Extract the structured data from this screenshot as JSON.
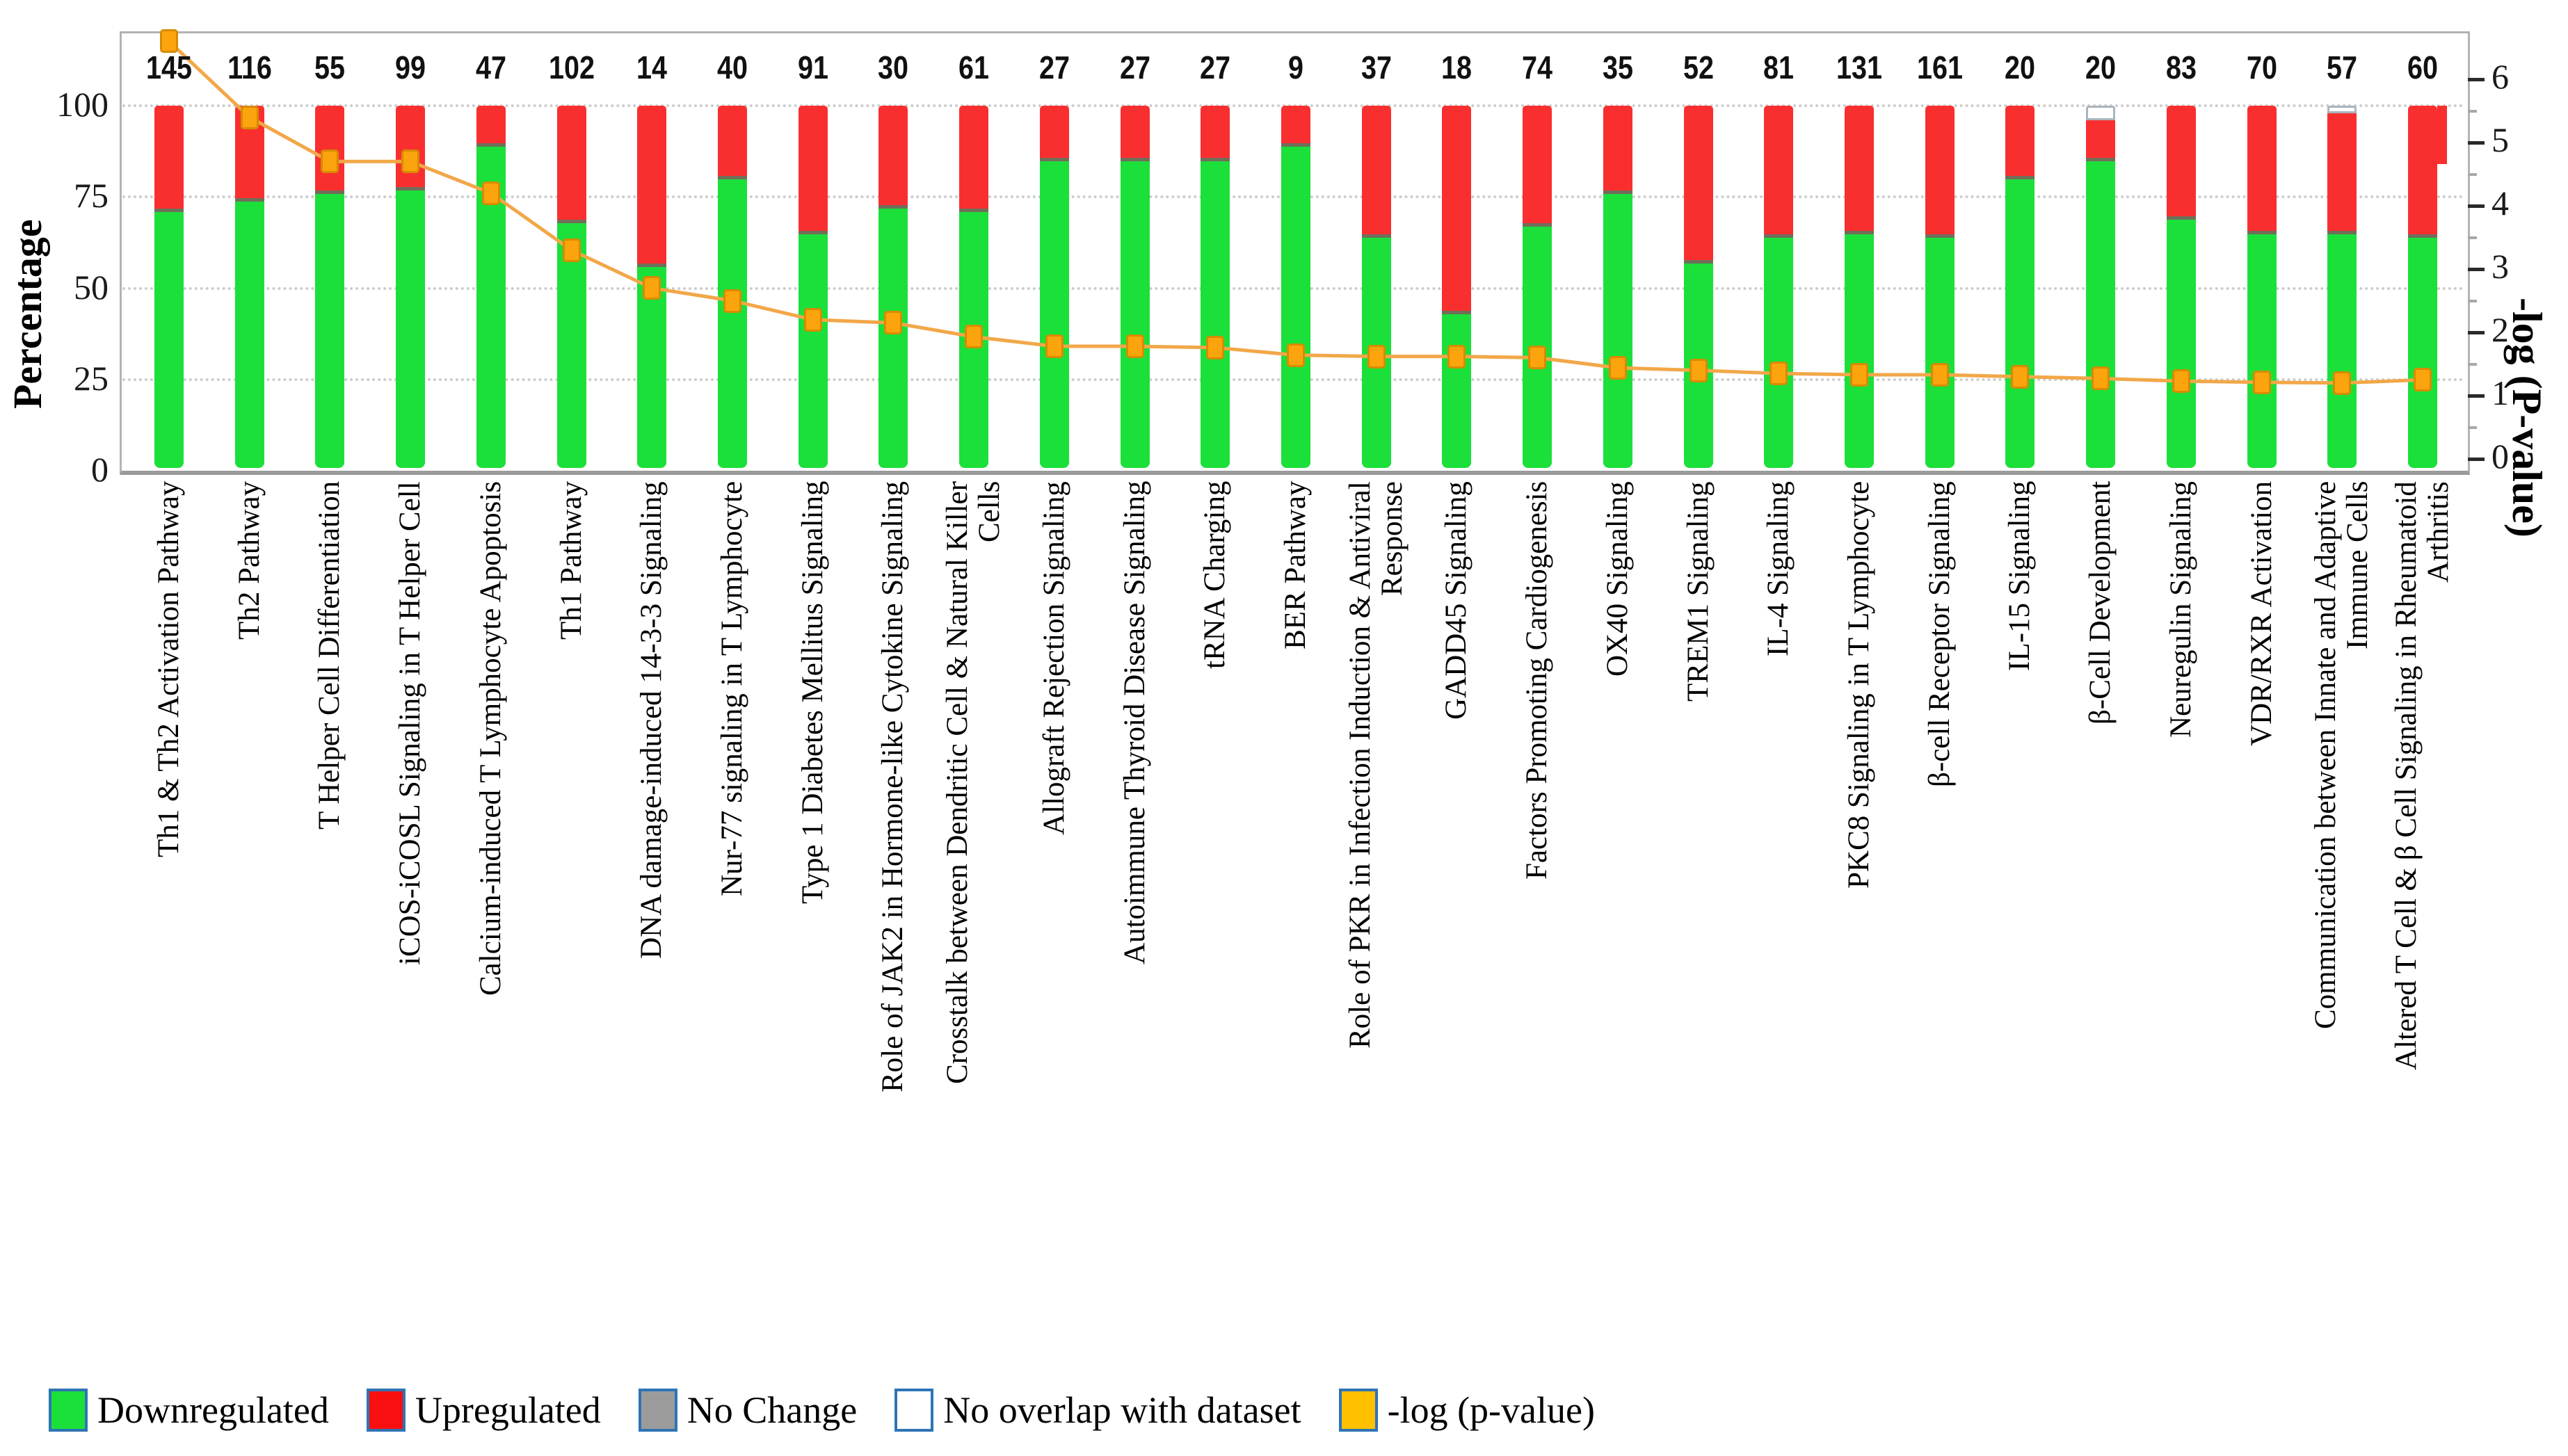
{
  "chart_data": {
    "type": "bar",
    "subtype": "stacked-percentage-bars-with-line-overlay",
    "title": "",
    "categories": [
      "Th1 & Th2 Activation Pathway",
      "Th2 Pathway",
      "T Helper Cell Differentiation",
      "iCOS-iCOSL Signaling in T Helper Cell",
      "Calcium-induced T Lymphocyte Apoptosis",
      "Th1 Pathway",
      "DNA damage-induced 14-3-3 Signaling",
      "Nur-77 signaling in T Lymphocyte",
      "Type 1 Diabetes Mellitus Signaling",
      "Role of JAK2 in Hormone-like Cytokine Signaling",
      "Crosstalk between Dendritic Cell & Natural Killer\nCells",
      "Allograft Rejection Signaling",
      "Autoimmune Thyroid Disease Signaling",
      "tRNA Charging",
      "BER Pathway",
      "Role of PKR in Infection Induction & Antiviral\nResponse",
      "GADD45 Signaling",
      "Factors Promoting Cardiogenesis",
      "OX40 Signaling",
      "TREM1 Signaling",
      "IL-4 Signaling",
      "PKC8 Signaling in T Lymphocyte",
      "β-cell Receptor Signaling",
      "IL-15 Signaling",
      "β-Cell Development",
      "Neuregulin Signaling",
      "VDR/RXR Activation",
      "Communication between Innate and Adaptive\nImmune Cells",
      "Altered T Cell & β Cell Signaling in Rheumatoid\nArthritis"
    ],
    "counts": [
      145,
      116,
      55,
      99,
      47,
      102,
      14,
      40,
      91,
      30,
      61,
      27,
      27,
      27,
      9,
      37,
      18,
      74,
      35,
      52,
      81,
      131,
      161,
      20,
      20,
      83,
      70,
      57,
      60
    ],
    "series": [
      {
        "name": "Downregulated",
        "color": "#1be03a",
        "values": [
          71,
          74,
          76,
          77,
          89,
          68,
          56,
          80,
          65,
          72,
          71,
          85,
          85,
          85,
          89,
          64,
          43,
          67,
          76,
          57,
          64,
          65,
          64,
          80,
          85,
          69,
          65,
          65,
          64
        ]
      },
      {
        "name": "Upregulated",
        "color": "#f92f2f",
        "values": [
          29,
          26,
          24,
          23,
          11,
          32,
          44,
          20,
          35,
          28,
          29,
          15,
          15,
          15,
          11,
          36,
          57,
          33,
          24,
          43,
          36,
          35,
          36,
          20,
          11,
          31,
          35,
          33,
          36
        ]
      },
      {
        "name": "No Change",
        "color": "#9b9b9b",
        "values": [
          0,
          0,
          0,
          0,
          0,
          0,
          0,
          0,
          0,
          0,
          0,
          0,
          0,
          0,
          0,
          0,
          0,
          0,
          0,
          0,
          0,
          0,
          0,
          0,
          0,
          0,
          0,
          0,
          0
        ]
      },
      {
        "name": "No overlap with dataset",
        "color": "#ffffff",
        "values": [
          0,
          0,
          0,
          0,
          0,
          0,
          0,
          0,
          0,
          0,
          0,
          0,
          0,
          0,
          0,
          0,
          0,
          0,
          0,
          0,
          0,
          0,
          0,
          0,
          4,
          0,
          0,
          2,
          0
        ]
      }
    ],
    "line": {
      "name": "-log (p-value)",
      "color": "#f2a748",
      "marker_color": "#fba40d",
      "values": [
        6.6,
        5.4,
        4.7,
        4.7,
        4.2,
        3.3,
        2.7,
        2.5,
        2.2,
        2.15,
        1.93,
        1.78,
        1.78,
        1.76,
        1.64,
        1.62,
        1.62,
        1.6,
        1.44,
        1.4,
        1.35,
        1.33,
        1.33,
        1.3,
        1.27,
        1.23,
        1.21,
        1.2,
        1.25
      ]
    },
    "axes": {
      "left": {
        "label": "Percentage",
        "ticks": [
          100,
          75,
          50,
          25,
          0
        ],
        "range": [
          0,
          100
        ]
      },
      "right": {
        "label": "-log (P-value)",
        "ticks": [
          6,
          5,
          4,
          3,
          2,
          1,
          0
        ],
        "range": [
          0,
          6.95
        ]
      }
    },
    "grid": {
      "horizontal_dotted_at": [
        100,
        75,
        50,
        25
      ]
    },
    "legend_position": "bottom",
    "last_bar_artifact": {
      "description": "small offset red tab on right side of last bar",
      "top_pct": 100,
      "bottom_pct": 84
    }
  },
  "legend": {
    "items": [
      {
        "label": "Downregulated",
        "color": "#1be03a"
      },
      {
        "label": "Upregulated",
        "color": "#f90f0f"
      },
      {
        "label": "No Change",
        "color": "#9b9b9b"
      },
      {
        "label": "No overlap with dataset",
        "color": "#ffffff"
      },
      {
        "label": "-log (p-value)",
        "color": "#ffc000"
      }
    ]
  },
  "colors": {
    "downregulated": "#1be03a",
    "upregulated": "#f92f2f",
    "no_change": "#9b9b9b",
    "no_overlap": "#ffffff",
    "pvalue_marker": "#fba40d",
    "pvalue_line": "#f2a748",
    "swatch_border": "#2e74b5",
    "gridline": "#cccccc"
  }
}
